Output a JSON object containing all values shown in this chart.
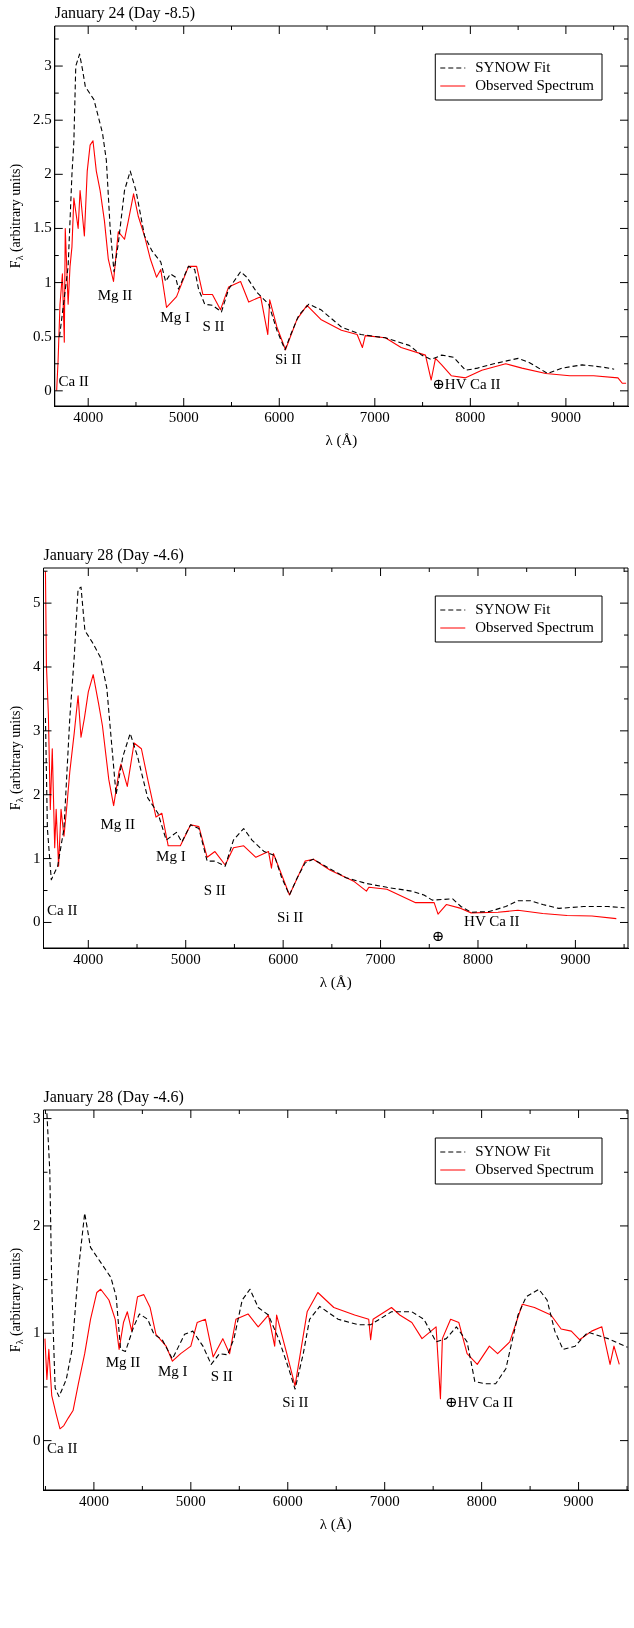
{
  "chart_data": [
    {
      "type": "line",
      "title": "January 24 (Day -8.5)",
      "xlabel": "λ (Å)",
      "ylabel": "F$_{λ}$ (arbitrary units)",
      "legend": "top right",
      "grid": false,
      "xlim": [
        3650,
        9650
      ],
      "ylim": [
        -0.14,
        3.37
      ],
      "xticks": [
        4000,
        {
          "value": 4500,
          "label": null
        },
        5000,
        {
          "value": 5500,
          "label": null
        },
        6000,
        {
          "value": 6500,
          "label": null
        },
        7000,
        {
          "value": 7500,
          "label": null
        },
        8000,
        {
          "value": 8500,
          "label": null
        },
        9000,
        {
          "value": 9500,
          "label": null
        }
      ],
      "yticks": [
        0,
        {
          "value": 0.25,
          "label": null
        },
        0.5,
        {
          "value": 0.75,
          "label": null
        },
        1,
        {
          "value": 1.25,
          "label": null
        },
        1.5,
        {
          "value": 1.75,
          "label": null
        },
        2,
        {
          "value": 2.25,
          "label": null
        },
        2.5,
        {
          "value": 2.75,
          "label": null
        },
        3,
        {
          "value": 3.25,
          "label": null
        }
      ],
      "series": [
        {
          "name": "SYNOW Fit",
          "color": "#000000",
          "line_style": "dashed",
          "x": [
            3700,
            3790,
            3830,
            3850,
            3870,
            3910,
            3940,
            3970,
            4060,
            4150,
            4190,
            4230,
            4270,
            4315,
            4380,
            4440,
            4500,
            4590,
            4670,
            4760,
            4810,
            4860,
            4915,
            4945,
            5050,
            5115,
            5155,
            5220,
            5300,
            5395,
            5470,
            5595,
            5660,
            5765,
            5890,
            5975,
            6060,
            6120,
            6205,
            6310,
            6435,
            6650,
            6855,
            7110,
            7360,
            7490,
            7590,
            7700,
            7825,
            7950,
            8075,
            8245,
            8500,
            8620,
            8810,
            8960,
            9170,
            9380,
            9505
          ],
          "values": [
            0.5,
            1.15,
            2.0,
            2.3,
            3.0,
            3.11,
            2.97,
            2.81,
            2.69,
            2.38,
            2.13,
            1.5,
            1.1,
            1.36,
            1.85,
            2.03,
            1.85,
            1.43,
            1.29,
            1.19,
            1.01,
            1.08,
            1.05,
            0.94,
            1.15,
            1.12,
            0.94,
            0.8,
            0.79,
            0.73,
            0.94,
            1.1,
            1.05,
            0.91,
            0.8,
            0.56,
            0.38,
            0.52,
            0.7,
            0.8,
            0.75,
            0.59,
            0.52,
            0.49,
            0.42,
            0.33,
            0.29,
            0.33,
            0.31,
            0.19,
            0.21,
            0.25,
            0.3,
            0.26,
            0.16,
            0.21,
            0.24,
            0.22,
            0.2
          ]
        },
        {
          "name": "Observed Spectrum",
          "color": "#ff0000",
          "x": [
            3670,
            3685,
            3705,
            3730,
            3750,
            3760,
            3790,
            3810,
            3830,
            3850,
            3895,
            3915,
            3960,
            3990,
            4020,
            4050,
            4085,
            4125,
            4170,
            4210,
            4265,
            4315,
            4380,
            4420,
            4475,
            4525,
            4590,
            4650,
            4715,
            4760,
            4820,
            4925,
            5050,
            5135,
            5200,
            5300,
            5385,
            5470,
            5595,
            5680,
            5805,
            5880,
            5900,
            5975,
            6065,
            6185,
            6290,
            6435,
            6650,
            6815,
            6870,
            6900,
            7110,
            7275,
            7530,
            7590,
            7635,
            7700,
            7800,
            7950,
            8120,
            8370,
            8540,
            8790,
            9040,
            9290,
            9545,
            9590,
            9630
          ],
          "values": [
            0.0,
            0.28,
            0.8,
            1.08,
            0.45,
            1.5,
            0.8,
            1.15,
            1.33,
            1.78,
            1.5,
            1.85,
            1.43,
            2.03,
            2.27,
            2.31,
            2.03,
            1.85,
            1.57,
            1.22,
            1.01,
            1.47,
            1.4,
            1.57,
            1.82,
            1.61,
            1.43,
            1.22,
            1.05,
            1.12,
            0.77,
            0.87,
            1.15,
            1.15,
            0.89,
            0.89,
            0.75,
            0.96,
            1.01,
            0.82,
            0.87,
            0.52,
            0.84,
            0.59,
            0.38,
            0.66,
            0.79,
            0.66,
            0.56,
            0.52,
            0.4,
            0.51,
            0.49,
            0.4,
            0.33,
            0.1,
            0.3,
            0.24,
            0.14,
            0.12,
            0.19,
            0.25,
            0.21,
            0.16,
            0.14,
            0.14,
            0.12,
            0.07,
            0.07
          ]
        }
      ],
      "annotations": [
        "Ca II",
        "Mg II",
        "Mg I",
        "S II",
        "Si II",
        "⊕HV Ca II"
      ]
    },
    {
      "type": "line",
      "title": "January 28 (Day -4.6)",
      "xlabel": "λ (Å)",
      "ylabel": "F$_{λ}$ (arbitrary units)",
      "legend": "top right",
      "grid": false,
      "xlim": [
        3540,
        9540
      ],
      "ylim": [
        -0.4,
        5.55
      ],
      "xticks": [
        4000,
        {
          "value": 4500,
          "label": null
        },
        5000,
        {
          "value": 5500,
          "label": null
        },
        6000,
        {
          "value": 6500,
          "label": null
        },
        7000,
        {
          "value": 7500,
          "label": null
        },
        8000,
        {
          "value": 8500,
          "label": null
        },
        9000,
        {
          "value": 9500,
          "label": null
        }
      ],
      "yticks": [
        0,
        {
          "value": 0.5,
          "label": null
        },
        1,
        {
          "value": 1.5,
          "label": null
        },
        2,
        {
          "value": 2.5,
          "label": null
        },
        3,
        {
          "value": 3.5,
          "label": null
        },
        4,
        {
          "value": 4.5,
          "label": null
        },
        5,
        {
          "value": 5.5,
          "label": null
        }
      ],
      "series": [
        {
          "name": "SYNOW Fit",
          "color": "#000000",
          "line_style": "dashed",
          "x": [
            3560,
            3580,
            3620,
            3685,
            3750,
            3810,
            3855,
            3895,
            3925,
            3965,
            4040,
            4125,
            4190,
            4230,
            4285,
            4355,
            4430,
            4505,
            4610,
            4715,
            4800,
            4905,
            4960,
            5050,
            5135,
            5220,
            5300,
            5405,
            5490,
            5595,
            5680,
            5805,
            5910,
            5985,
            6065,
            6145,
            6225,
            6310,
            6435,
            6645,
            6855,
            7065,
            7320,
            7445,
            7530,
            7740,
            7825,
            7930,
            8115,
            8285,
            8410,
            8540,
            8665,
            8830,
            9085,
            9335,
            9505
          ],
          "values": [
            3.2,
            1.47,
            0.67,
            0.88,
            1.47,
            3.2,
            4.15,
            5.22,
            5.25,
            4.57,
            4.39,
            4.15,
            3.67,
            2.96,
            2.0,
            2.6,
            2.96,
            2.6,
            1.95,
            1.71,
            1.29,
            1.41,
            1.26,
            1.53,
            1.47,
            0.96,
            0.96,
            0.88,
            1.29,
            1.47,
            1.29,
            1.11,
            1.05,
            0.7,
            0.43,
            0.7,
            0.93,
            0.99,
            0.88,
            0.7,
            0.61,
            0.55,
            0.49,
            0.43,
            0.35,
            0.37,
            0.25,
            0.16,
            0.17,
            0.25,
            0.34,
            0.34,
            0.28,
            0.22,
            0.25,
            0.25,
            0.23
          ]
        },
        {
          "name": "Observed Spectrum",
          "color": "#ff0000",
          "x": [
            3560,
            3570,
            3590,
            3610,
            3630,
            3655,
            3670,
            3695,
            3720,
            3750,
            3780,
            3810,
            3855,
            3895,
            3925,
            3960,
            4000,
            4050,
            4105,
            4145,
            4210,
            4260,
            4315,
            4335,
            4400,
            4470,
            4545,
            4610,
            4695,
            4755,
            4820,
            4945,
            5050,
            5135,
            5220,
            5300,
            5405,
            5490,
            5595,
            5720,
            5850,
            5880,
            5900,
            6065,
            6225,
            6310,
            6480,
            6730,
            6855,
            6880,
            7065,
            7360,
            7550,
            7590,
            7675,
            7825,
            7930,
            8205,
            8410,
            8665,
            8915,
            9170,
            9420
          ],
          "values": [
            5.5,
            4.03,
            3.26,
            1.77,
            2.72,
            1.17,
            1.77,
            0.88,
            1.77,
            1.35,
            1.83,
            2.36,
            2.96,
            3.55,
            2.9,
            3.2,
            3.61,
            3.88,
            3.43,
            3.08,
            2.24,
            1.83,
            2.36,
            2.48,
            2.13,
            2.81,
            2.72,
            2.24,
            1.65,
            1.71,
            1.2,
            1.2,
            1.53,
            1.5,
            1.02,
            1.11,
            0.9,
            1.17,
            1.2,
            1.02,
            1.11,
            0.85,
            1.08,
            0.43,
            0.96,
            0.99,
            0.82,
            0.64,
            0.49,
            0.55,
            0.52,
            0.31,
            0.31,
            0.13,
            0.28,
            0.22,
            0.15,
            0.16,
            0.19,
            0.14,
            0.11,
            0.1,
            0.06
          ]
        }
      ],
      "annotations": [
        "Ca II",
        "Mg II",
        "Mg I",
        "S II",
        "Si II",
        "⊕",
        "HV Ca II"
      ]
    },
    {
      "type": "line",
      "title": "January 28 (Day -4.6)",
      "xlabel": "λ (Å)",
      "ylabel": "F$_{λ}$ (arbitrary units)",
      "legend": "top right",
      "grid": false,
      "xlim": [
        3480,
        9510
      ],
      "ylim": [
        -0.46,
        3.08
      ],
      "xticks": [
        {
          "value": 3500,
          "label": null
        },
        4000,
        {
          "value": 4500,
          "label": null
        },
        5000,
        {
          "value": 5500,
          "label": null
        },
        6000,
        {
          "value": 6500,
          "label": null
        },
        7000,
        {
          "value": 7500,
          "label": null
        },
        8000,
        {
          "value": 8500,
          "label": null
        },
        9000,
        {
          "value": 9500,
          "label": null
        }
      ],
      "yticks": [
        0,
        {
          "value": 0.5,
          "label": null
        },
        1,
        {
          "value": 1.5,
          "label": null
        },
        2,
        {
          "value": 2.5,
          "label": null
        },
        3
      ],
      "series": [
        {
          "name": "SYNOW Fit",
          "color": "#000000",
          "line_style": "dashed",
          "x": [
            3515,
            3545,
            3565,
            3600,
            3640,
            3715,
            3775,
            3840,
            3905,
            3965,
            4070,
            4175,
            4230,
            4275,
            4325,
            4410,
            4470,
            4555,
            4620,
            4705,
            4810,
            4935,
            5020,
            5125,
            5210,
            5295,
            5380,
            5445,
            5530,
            5610,
            5695,
            5800,
            5905,
            6010,
            6075,
            6160,
            6225,
            6330,
            6520,
            6730,
            6855,
            7070,
            7280,
            7405,
            7530,
            7635,
            7740,
            7850,
            7930,
            8040,
            8145,
            8250,
            8375,
            8460,
            8590,
            8675,
            8755,
            8840,
            8965,
            9095,
            9305,
            9505
          ],
          "values": [
            3.05,
            2.51,
            1.45,
            0.49,
            0.41,
            0.57,
            0.85,
            1.59,
            2.12,
            1.8,
            1.66,
            1.52,
            1.34,
            0.85,
            0.83,
            1.06,
            1.18,
            1.13,
            0.99,
            0.94,
            0.76,
            0.99,
            1.02,
            0.88,
            0.71,
            0.81,
            0.8,
            0.95,
            1.31,
            1.41,
            1.24,
            1.17,
            0.95,
            0.67,
            0.48,
            0.81,
            1.13,
            1.25,
            1.13,
            1.08,
            1.08,
            1.2,
            1.2,
            1.13,
            0.92,
            0.95,
            1.06,
            0.92,
            0.55,
            0.53,
            0.53,
            0.67,
            1.17,
            1.34,
            1.41,
            1.31,
            1.02,
            0.85,
            0.88,
            1.01,
            0.95,
            0.87
          ]
        },
        {
          "name": "Observed Spectrum",
          "color": "#ff0000",
          "x": [
            3495,
            3515,
            3535,
            3565,
            3610,
            3650,
            3690,
            3735,
            3785,
            3840,
            3905,
            3965,
            4030,
            4070,
            4155,
            4220,
            4260,
            4305,
            4345,
            4390,
            4450,
            4515,
            4580,
            4640,
            4745,
            4810,
            4895,
            5000,
            5065,
            5150,
            5230,
            5330,
            5400,
            5465,
            5590,
            5695,
            5800,
            5865,
            5885,
            5990,
            6075,
            6200,
            6310,
            6475,
            6690,
            6835,
            6855,
            6880,
            7070,
            7155,
            7280,
            7385,
            7530,
            7575,
            7595,
            7680,
            7765,
            7850,
            7955,
            8080,
            8165,
            8290,
            8420,
            8545,
            8715,
            8820,
            8925,
            9010,
            9135,
            9240,
            9325,
            9365,
            9420
          ],
          "values": [
            0.95,
            0.57,
            0.85,
            0.42,
            0.25,
            0.11,
            0.14,
            0.21,
            0.28,
            0.53,
            0.81,
            1.13,
            1.38,
            1.41,
            1.31,
            1.13,
            0.85,
            1.1,
            1.2,
            1.02,
            1.34,
            1.36,
            1.24,
            0.99,
            0.88,
            0.74,
            0.81,
            0.88,
            1.1,
            1.13,
            0.78,
            0.95,
            0.81,
            1.13,
            1.18,
            1.06,
            1.17,
            0.88,
            1.17,
            0.81,
            0.51,
            1.2,
            1.38,
            1.24,
            1.17,
            1.13,
            0.94,
            1.13,
            1.24,
            1.17,
            1.1,
            0.95,
            1.06,
            0.39,
            0.95,
            1.13,
            1.1,
            0.81,
            0.71,
            0.88,
            0.81,
            0.92,
            1.27,
            1.24,
            1.17,
            1.04,
            1.02,
            0.94,
            1.02,
            1.06,
            0.71,
            0.88,
            0.71
          ]
        }
      ],
      "annotations": [
        "Ca II",
        "Mg II",
        "Mg I",
        "S II",
        "Si II",
        "⊕HV Ca II"
      ]
    }
  ]
}
